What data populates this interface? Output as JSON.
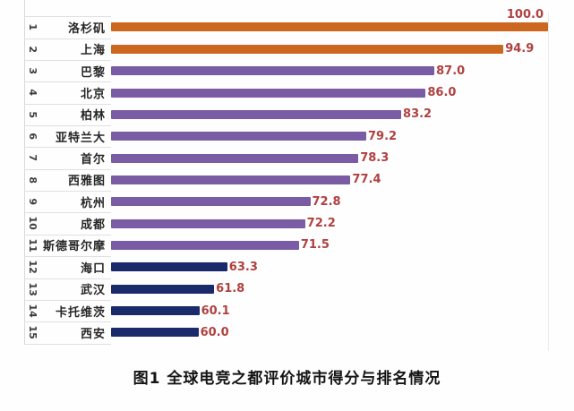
{
  "caption": "图1 全球电竞之都评价城市得分与排名情况",
  "colors": {
    "tier_top_orange": "#cc671f",
    "tier_mid_purple": "#7a5ca5",
    "tier_low_navy": "#1b2a6b",
    "value_label_red": "#b04040",
    "grid_line": "#dddddd",
    "background": "#fefefe"
  },
  "chart_data": {
    "type": "bar",
    "orientation": "horizontal",
    "title": "图1 全球电竞之都评价城市得分与排名情况",
    "xlabel": "",
    "ylabel": "",
    "x_range": [
      50,
      100
    ],
    "grid": "row separators in label column, right boundary line at 100",
    "legend": "none",
    "value_labels": "shown at bar ends in dark red; top bar label placed above bar",
    "rows": [
      {
        "rank": "1",
        "city": "洛杉矶",
        "value": 100.0,
        "label": "100.0",
        "tier": "top",
        "color": "#cc671f",
        "label_above": true
      },
      {
        "rank": "2",
        "city": "上海",
        "value": 94.9,
        "label": "94.9",
        "tier": "top",
        "color": "#cc671f"
      },
      {
        "rank": "3",
        "city": "巴黎",
        "value": 87.0,
        "label": "87.0",
        "tier": "mid",
        "color": "#7a5ca5"
      },
      {
        "rank": "4",
        "city": "北京",
        "value": 86.0,
        "label": "86.0",
        "tier": "mid",
        "color": "#7a5ca5"
      },
      {
        "rank": "5",
        "city": "柏林",
        "value": 83.2,
        "label": "83.2",
        "tier": "mid",
        "color": "#7a5ca5"
      },
      {
        "rank": "6",
        "city": "亚特兰大",
        "value": 79.2,
        "label": "79.2",
        "tier": "mid",
        "color": "#7a5ca5"
      },
      {
        "rank": "7",
        "city": "首尔",
        "value": 78.3,
        "label": "78.3",
        "tier": "mid",
        "color": "#7a5ca5"
      },
      {
        "rank": "8",
        "city": "西雅图",
        "value": 77.4,
        "label": "77.4",
        "tier": "mid",
        "color": "#7a5ca5"
      },
      {
        "rank": "9",
        "city": "杭州",
        "value": 72.8,
        "label": "72.8",
        "tier": "mid",
        "color": "#7a5ca5"
      },
      {
        "rank": "10",
        "city": "成都",
        "value": 72.2,
        "label": "72.2",
        "tier": "mid",
        "color": "#7a5ca5"
      },
      {
        "rank": "11",
        "city": "斯德哥尔摩",
        "value": 71.5,
        "label": "71.5",
        "tier": "mid",
        "color": "#7a5ca5"
      },
      {
        "rank": "12",
        "city": "海口",
        "value": 63.3,
        "label": "63.3",
        "tier": "low",
        "color": "#1b2a6b"
      },
      {
        "rank": "13",
        "city": "武汉",
        "value": 61.8,
        "label": "61.8",
        "tier": "low",
        "color": "#1b2a6b"
      },
      {
        "rank": "14",
        "city": "卡托维茨",
        "value": 60.1,
        "label": "60.1",
        "tier": "low",
        "color": "#1b2a6b"
      },
      {
        "rank": "15",
        "city": "西安",
        "value": 60.0,
        "label": "60.0",
        "tier": "low",
        "color": "#1b2a6b"
      }
    ]
  }
}
